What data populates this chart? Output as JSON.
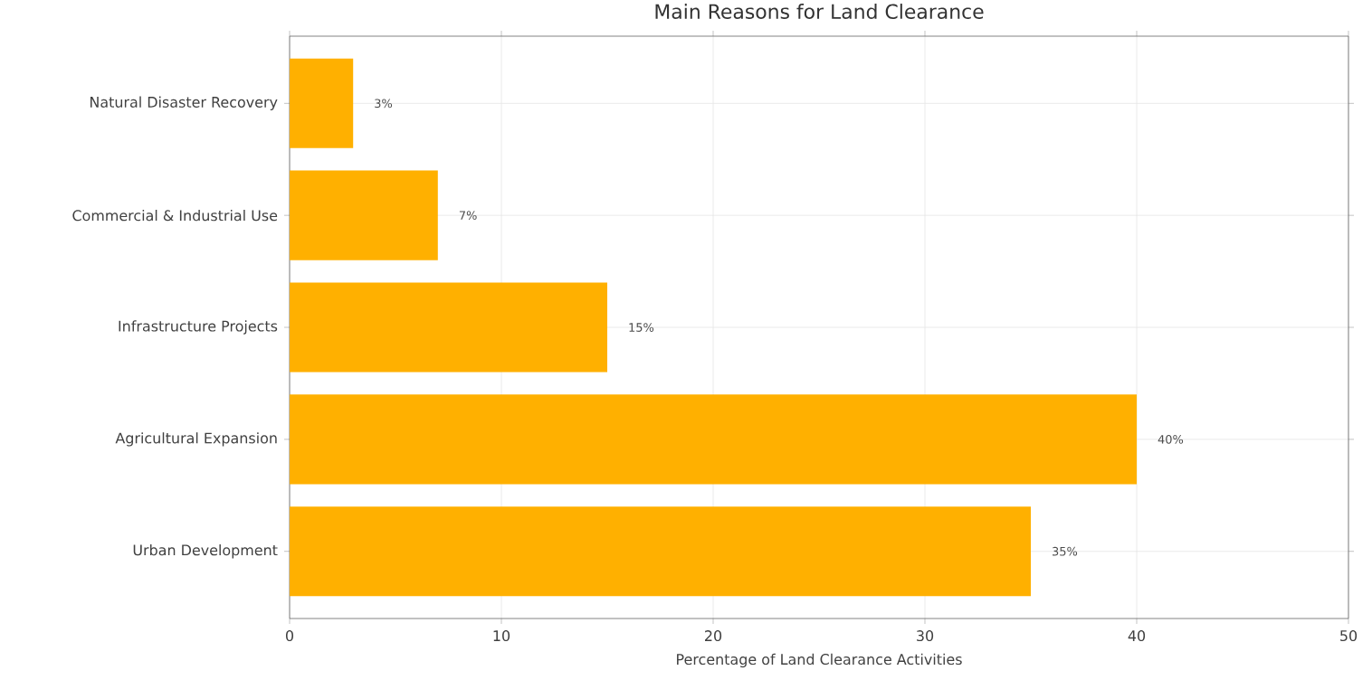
{
  "chart_data": {
    "type": "bar",
    "orientation": "horizontal",
    "title": "Main Reasons for Land Clearance",
    "xlabel": "Percentage of Land Clearance Activities",
    "categories": [
      "Natural Disaster Recovery",
      "Commercial & Industrial Use",
      "Infrastructure Projects",
      "Agricultural Expansion",
      "Urban Development"
    ],
    "values": [
      3,
      7,
      15,
      40,
      35
    ],
    "value_labels": [
      "3%",
      "7%",
      "15%",
      "40%",
      "35%"
    ],
    "color": "#ffb000",
    "xlim": [
      0,
      50
    ],
    "xticks": [
      0,
      10,
      20,
      30,
      40,
      50
    ],
    "grid": true
  }
}
